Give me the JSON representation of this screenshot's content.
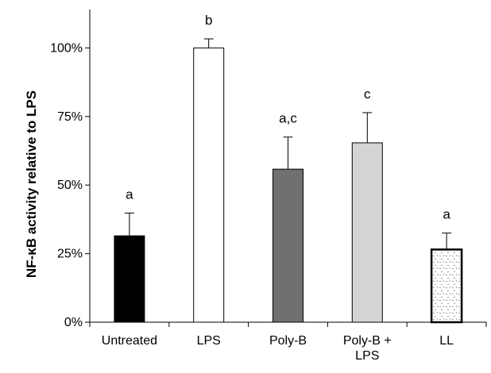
{
  "chart_data": {
    "type": "bar",
    "ylabel": "NF-κB activity relative to LPS",
    "ylim": [
      0,
      114
    ],
    "yticks": [
      0,
      25,
      50,
      75,
      100
    ],
    "ytick_labels": [
      "0%",
      "25%",
      "50%",
      "75%",
      "100%"
    ],
    "categories": [
      "Untreated",
      "LPS",
      "Poly-B",
      "Poly-B + LPS",
      "LL"
    ],
    "category_label_lines": [
      [
        "Untreated"
      ],
      [
        "LPS"
      ],
      [
        "Poly-B"
      ],
      [
        "Poly-B +",
        "LPS"
      ],
      [
        "LL"
      ]
    ],
    "values": [
      31.5,
      100,
      55.8,
      65.4,
      26.5
    ],
    "error_plus": [
      8.3,
      3.3,
      11.7,
      11.0,
      6.0
    ],
    "significance": [
      "a",
      "b",
      "a,c",
      "c",
      "a"
    ],
    "bar_fills": [
      "#000000",
      "#ffffff",
      "#707070",
      "#d4d4d4",
      "pattern"
    ],
    "grid": false,
    "legend": "none"
  }
}
